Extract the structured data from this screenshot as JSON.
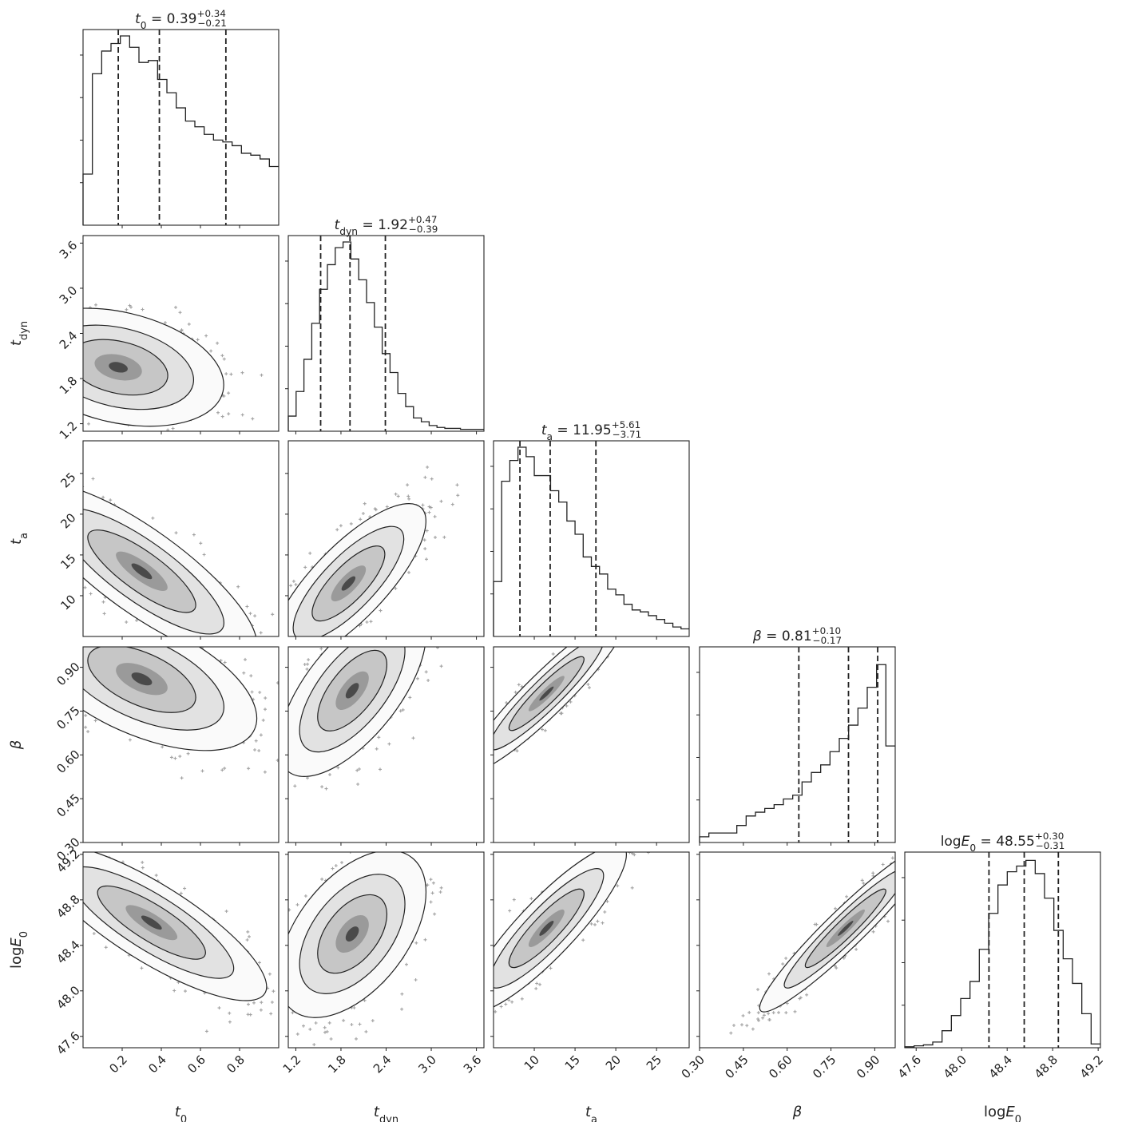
{
  "chart_data": {
    "type": "corner",
    "parameters": [
      {
        "key": "t0",
        "symbol": "t",
        "sub": "0",
        "logPrefix": "",
        "range": [
          0.0,
          1.0
        ],
        "ticks": [
          0.2,
          0.4,
          0.6,
          0.8
        ],
        "tickLabels": [
          "0.2",
          "0.4",
          "0.6",
          "0.8"
        ],
        "median": 0.39,
        "plus": 0.34,
        "minus": 0.21,
        "title_value": "0.39",
        "title_plus": "+0.34",
        "title_minus": "−0.21",
        "hist": [
          0.27,
          0.8,
          0.92,
          0.96,
          1.0,
          0.94,
          0.86,
          0.87,
          0.77,
          0.7,
          0.62,
          0.55,
          0.52,
          0.48,
          0.45,
          0.44,
          0.42,
          0.38,
          0.37,
          0.35,
          0.31
        ]
      },
      {
        "key": "tdyn",
        "symbol": "t",
        "sub": "dyn",
        "logPrefix": "",
        "range": [
          1.1,
          3.7
        ],
        "ticks": [
          1.2,
          1.8,
          2.4,
          3.0,
          3.6
        ],
        "tickLabels": [
          "1.2",
          "1.8",
          "2.4",
          "3.0",
          "3.6"
        ],
        "median": 1.92,
        "plus": 0.47,
        "minus": 0.39,
        "title_value": "1.92",
        "title_plus": "+0.47",
        "title_minus": "−0.39",
        "hist": [
          0.08,
          0.21,
          0.38,
          0.57,
          0.75,
          0.88,
          0.97,
          1.0,
          0.91,
          0.8,
          0.68,
          0.55,
          0.41,
          0.31,
          0.2,
          0.13,
          0.07,
          0.05,
          0.03,
          0.02,
          0.015,
          0.015,
          0.01,
          0.01,
          0.01
        ]
      },
      {
        "key": "ta",
        "symbol": "t",
        "sub": "a",
        "logPrefix": "",
        "range": [
          5,
          29
        ],
        "ticks": [
          10,
          15,
          20,
          25
        ],
        "tickLabels": [
          "10",
          "15",
          "20",
          "25"
        ],
        "median": 11.95,
        "plus": 5.61,
        "minus": 3.71,
        "title_value": "11.95",
        "title_plus": "+5.61",
        "title_minus": "−3.71",
        "hist": [
          0.29,
          0.82,
          0.93,
          1.0,
          0.95,
          0.85,
          0.85,
          0.77,
          0.71,
          0.61,
          0.54,
          0.42,
          0.37,
          0.33,
          0.25,
          0.22,
          0.17,
          0.14,
          0.13,
          0.11,
          0.09,
          0.07,
          0.05,
          0.04
        ]
      },
      {
        "key": "beta",
        "symbol": "β",
        "sub": "",
        "logPrefix": "",
        "range": [
          0.3,
          0.97
        ],
        "ticks": [
          0.3,
          0.45,
          0.6,
          0.75,
          0.9
        ],
        "tickLabels": [
          "0.30",
          "0.45",
          "0.60",
          "0.75",
          "0.90"
        ],
        "median": 0.81,
        "plus": 0.1,
        "minus": 0.17,
        "title_value": "0.81",
        "title_plus": "+0.10",
        "title_minus": "−0.17",
        "hist": [
          0.03,
          0.05,
          0.05,
          0.05,
          0.09,
          0.14,
          0.16,
          0.18,
          0.2,
          0.23,
          0.25,
          0.32,
          0.37,
          0.41,
          0.48,
          0.55,
          0.62,
          0.71,
          0.82,
          0.94,
          0.51
        ]
      },
      {
        "key": "logE0",
        "symbol": "E",
        "sub": "0",
        "logPrefix": "log",
        "range": [
          47.5,
          49.22
        ],
        "ticks": [
          47.6,
          48.0,
          48.4,
          48.8,
          49.2
        ],
        "tickLabels": [
          "47.6",
          "48.0",
          "48.4",
          "48.8",
          "49.2"
        ],
        "median": 48.55,
        "plus": 0.3,
        "minus": 0.31,
        "title_value": "48.55",
        "title_plus": "+0.30",
        "title_minus": "−0.31",
        "hist": [
          0.005,
          0.01,
          0.015,
          0.03,
          0.09,
          0.17,
          0.26,
          0.35,
          0.52,
          0.71,
          0.86,
          0.93,
          0.96,
          0.99,
          0.92,
          0.79,
          0.62,
          0.47,
          0.34,
          0.18,
          0.02
        ]
      }
    ],
    "pairs": [
      {
        "r": 1,
        "c": 0,
        "center": [
          0.18,
          1.95
        ],
        "sigma": [
          0.22,
          0.32
        ],
        "rho": -0.3
      },
      {
        "r": 2,
        "c": 0,
        "center": [
          0.3,
          13
        ],
        "sigma": [
          0.24,
          4.4
        ],
        "rho": -0.82
      },
      {
        "r": 2,
        "c": 1,
        "center": [
          1.9,
          11.5
        ],
        "sigma": [
          0.42,
          4.0
        ],
        "rho": 0.78
      },
      {
        "r": 3,
        "c": 0,
        "center": [
          0.3,
          0.86
        ],
        "sigma": [
          0.24,
          0.1
        ],
        "rho": -0.55
      },
      {
        "r": 3,
        "c": 1,
        "center": [
          1.95,
          0.82
        ],
        "sigma": [
          0.4,
          0.12
        ],
        "rho": 0.65
      },
      {
        "r": 3,
        "c": 2,
        "center": [
          11.5,
          0.81
        ],
        "sigma": [
          4.0,
          0.11
        ],
        "rho": 0.93
      },
      {
        "r": 4,
        "c": 0,
        "center": [
          0.35,
          48.6
        ],
        "sigma": [
          0.24,
          0.28
        ],
        "rho": -0.82
      },
      {
        "r": 4,
        "c": 1,
        "center": [
          1.95,
          48.5
        ],
        "sigma": [
          0.4,
          0.3
        ],
        "rho": 0.5
      },
      {
        "r": 4,
        "c": 2,
        "center": [
          11.5,
          48.55
        ],
        "sigma": [
          4.0,
          0.3
        ],
        "rho": 0.88
      },
      {
        "r": 4,
        "c": 3,
        "center": [
          0.8,
          48.55
        ],
        "sigma": [
          0.12,
          0.3
        ],
        "rho": 0.95
      }
    ],
    "axis_labels": {
      "x": [
        {
          "symbol": "t",
          "sub": "0",
          "logPrefix": ""
        },
        {
          "symbol": "t",
          "sub": "dyn",
          "logPrefix": ""
        },
        {
          "symbol": "t",
          "sub": "a",
          "logPrefix": ""
        },
        {
          "symbol": "β",
          "sub": "",
          "logPrefix": ""
        },
        {
          "symbol": "E",
          "sub": "0",
          "logPrefix": "log"
        }
      ],
      "y": [
        {
          "symbol": "t",
          "sub": "dyn",
          "logPrefix": ""
        },
        {
          "symbol": "t",
          "sub": "a",
          "logPrefix": ""
        },
        {
          "symbol": "β",
          "sub": "",
          "logPrefix": ""
        },
        {
          "symbol": "E",
          "sub": "0",
          "logPrefix": "log"
        }
      ]
    },
    "colors": {
      "line": "#222222",
      "density_dark": "#3a3a3a",
      "points": "#555555"
    }
  }
}
